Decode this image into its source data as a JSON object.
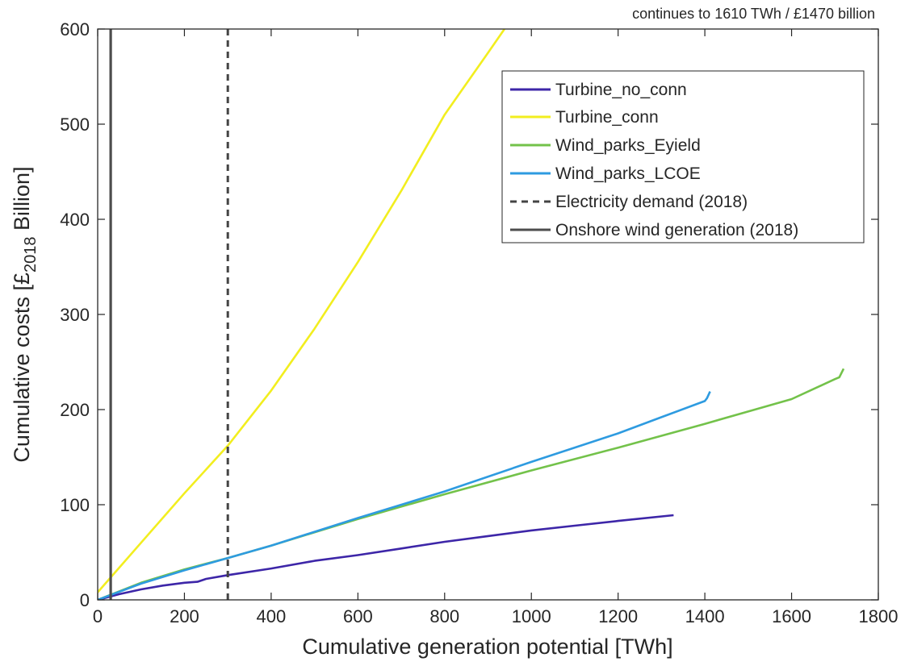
{
  "chart_data": {
    "type": "line",
    "xlabel": "Cumulative generation potential [TWh]",
    "ylabel": {
      "prefix": "Cumulative costs [£",
      "subscript": "2018",
      "suffix": " Billion]"
    },
    "annotation": "continues to 1610 TWh / £1470 billion",
    "xlim": [
      0,
      1800
    ],
    "ylim": [
      0,
      600
    ],
    "xticks": [
      "0",
      "200",
      "400",
      "600",
      "800",
      "1000",
      "1200",
      "1400",
      "1600",
      "1800"
    ],
    "yticks": [
      "0",
      "100",
      "200",
      "300",
      "400",
      "500",
      "600"
    ],
    "legend_position": "top-right",
    "grid": false,
    "series": [
      {
        "name": "Turbine_no_conn",
        "color": "#3d26a8",
        "style": "solid",
        "x": [
          0,
          50,
          100,
          150,
          200,
          230,
          250,
          300,
          400,
          500,
          600,
          700,
          800,
          900,
          1000,
          1100,
          1200,
          1328
        ],
        "y": [
          0,
          6,
          11,
          15,
          18,
          19,
          22,
          26,
          33,
          41,
          47,
          54,
          61,
          67,
          73,
          78,
          83,
          89
        ]
      },
      {
        "name": "Turbine_conn",
        "color": "#f2ee1f",
        "style": "solid",
        "x": [
          0,
          100,
          200,
          300,
          400,
          500,
          600,
          700,
          800,
          900,
          938
        ],
        "y": [
          8,
          60,
          112,
          162,
          220,
          285,
          355,
          430,
          510,
          575,
          600
        ]
      },
      {
        "name": "Wind_parks_Eyield",
        "color": "#73c24a",
        "style": "solid",
        "x": [
          0,
          100,
          200,
          300,
          400,
          600,
          800,
          1000,
          1200,
          1400,
          1600,
          1700,
          1710,
          1720
        ],
        "y": [
          0,
          18,
          32,
          44,
          57,
          85,
          111,
          136,
          160,
          185,
          211,
          232,
          234,
          243
        ]
      },
      {
        "name": "Wind_parks_LCOE",
        "color": "#2e9be0",
        "style": "solid",
        "x": [
          0,
          100,
          200,
          300,
          400,
          600,
          800,
          1000,
          1200,
          1300,
          1400,
          1405,
          1412
        ],
        "y": [
          0,
          17,
          31,
          44,
          57,
          86,
          114,
          145,
          175,
          192,
          209,
          212,
          219
        ]
      },
      {
        "name": "Electricity demand (2018)",
        "color": "#444444",
        "style": "dashed",
        "x": [
          300,
          300
        ],
        "y": [
          0,
          600
        ]
      },
      {
        "name": "Onshore wind generation (2018)",
        "color": "#4d4d4d",
        "style": "solid",
        "x": [
          30,
          30
        ],
        "y": [
          0,
          600
        ]
      }
    ]
  }
}
